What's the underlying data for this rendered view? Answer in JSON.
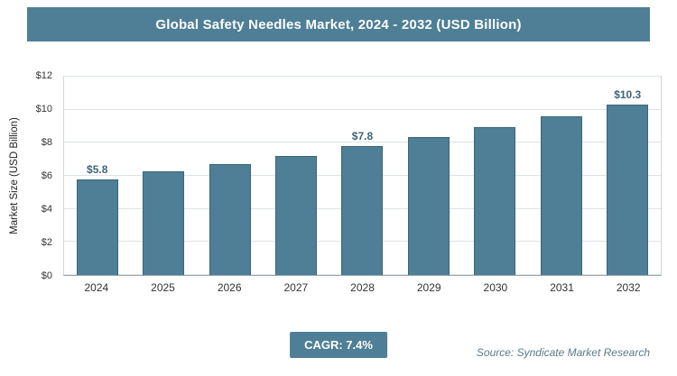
{
  "title": "Global Safety Needles Market, 2024 - 2032 (USD Billion)",
  "footer": {
    "cagr_label": "CAGR: 7.4%",
    "source": "Source: Syndicate Market Research"
  },
  "colors": {
    "accent": "#4e7f96",
    "bar_fill": "#4e7f96",
    "bar_border": "#39657a",
    "value_label": "#3f6476"
  },
  "chart_data": {
    "type": "bar",
    "title": "Global Safety Needles Market, 2024 - 2032 (USD Billion)",
    "categories": [
      "2024",
      "2025",
      "2026",
      "2027",
      "2028",
      "2029",
      "2030",
      "2031",
      "2032"
    ],
    "values": [
      5.8,
      6.25,
      6.7,
      7.2,
      7.8,
      8.35,
      8.95,
      9.6,
      10.3
    ],
    "point_labels": [
      "$5.8",
      "",
      "",
      "",
      "$7.8",
      "",
      "",
      "",
      "$10.3"
    ],
    "xlabel": "",
    "ylabel": "Market Size (USD Billion)",
    "ylim": [
      0,
      12
    ],
    "ytick_step": 2,
    "yticks": [
      "$0",
      "$2",
      "$4",
      "$6",
      "$8",
      "$10",
      "$12"
    ],
    "grid": true,
    "legend": false,
    "cagr": "7.4%"
  }
}
